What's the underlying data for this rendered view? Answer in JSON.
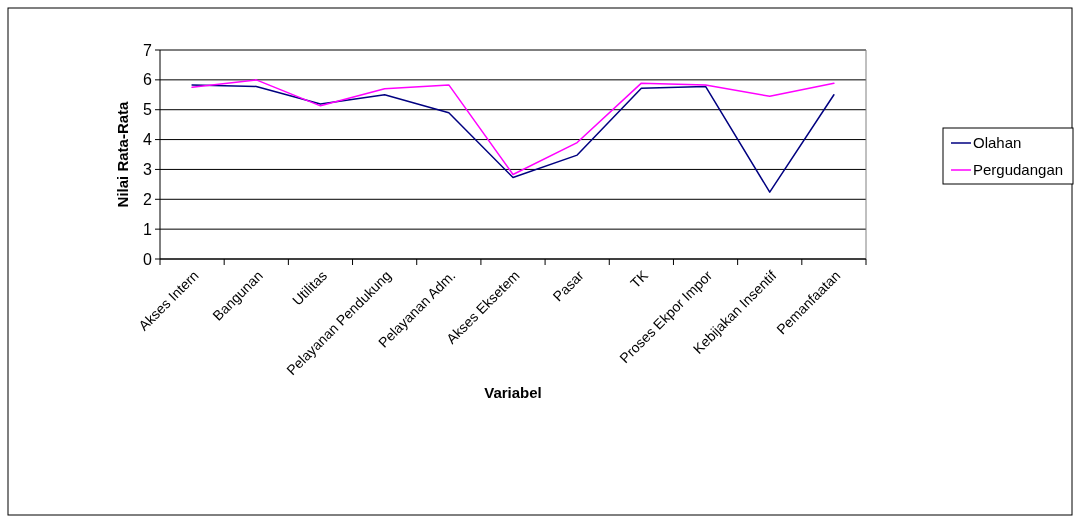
{
  "chart_data": {
    "type": "line",
    "xlabel": "Variabel",
    "ylabel": "Nilai Rata-Rata",
    "categories": [
      "Akses Intern",
      "Bangunan",
      "Utilitas",
      "Pelayanan Pendukung",
      "Pelayanan Adm.",
      "Akses Eksetem",
      "Pasar",
      "TK",
      "Proses Ekpor Impor",
      "Kebijakan Insentif",
      "Pemanfaatan"
    ],
    "series": [
      {
        "name": "Olahan",
        "color": "#000080",
        "values": [
          5.83,
          5.78,
          5.19,
          5.5,
          4.9,
          2.73,
          3.48,
          5.72,
          5.78,
          2.24,
          5.5
        ]
      },
      {
        "name": "Pergudangan",
        "color": "#ff00ff",
        "values": [
          5.75,
          6.0,
          5.13,
          5.7,
          5.83,
          2.83,
          3.9,
          5.89,
          5.83,
          5.45,
          5.89
        ]
      }
    ],
    "ylim": [
      0,
      7
    ],
    "yticks": [
      0,
      1,
      2,
      3,
      4,
      5,
      6,
      7
    ],
    "grid": "y",
    "legend": "right",
    "marker": "none",
    "line_style": "solid"
  }
}
